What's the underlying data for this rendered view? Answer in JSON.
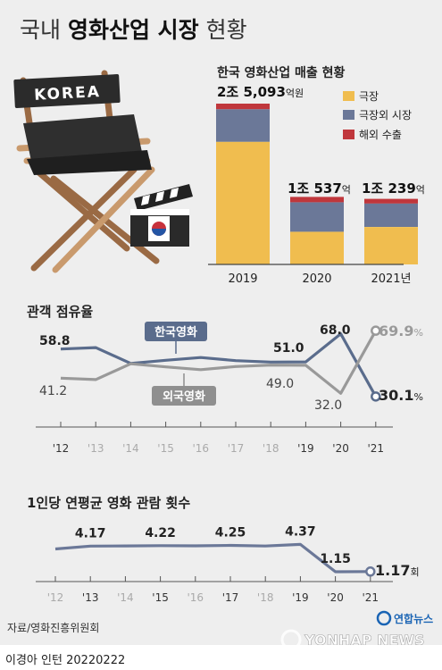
{
  "title": {
    "normal": "국내 ",
    "bold": "영화산업 시장",
    "suffix": " 현황"
  },
  "chair_label": "KOREA",
  "revenue_chart": {
    "title": "한국 영화산업 매출 현황",
    "legend": [
      "극장",
      "극장외 시장",
      "해외 수출"
    ],
    "colors": {
      "theater": "#f0bd4f",
      "non_theater": "#6b7898",
      "export": "#c0373c"
    },
    "labels": [
      {
        "big": "2조 5,093",
        "unit": "억원"
      },
      {
        "big": "1조 537",
        "unit": "억"
      },
      {
        "big": "1조 239",
        "unit": "억"
      }
    ]
  },
  "share_chart": {
    "title": "관객 점유율",
    "domestic_label": "한국영화",
    "foreign_label": "외국영화",
    "value_labels": {
      "d12": "58.8",
      "f12": "41.2",
      "d19": "51.0",
      "f19": "49.0",
      "d20": "68.0",
      "f20": "32.0",
      "d21": "30.1",
      "f21": "69.9",
      "pct": "%"
    }
  },
  "visits_chart": {
    "title": "1인당 연평균 영화 관람 횟수",
    "value_labels": [
      "4.17",
      "4.22",
      "4.25",
      "4.37",
      "1.15",
      "1.17"
    ],
    "last_unit": "회"
  },
  "source": "자료/영화진흥위원회",
  "logo_text": "연합뉴스",
  "watermark": "YONHAP NEWS",
  "footer": "이경아 인턴  20220222",
  "chart_data": [
    {
      "type": "bar",
      "title": "한국 영화산업 매출 현황",
      "categories": [
        "2019",
        "2020",
        "2021년"
      ],
      "series": [
        {
          "name": "극장",
          "values": [
            19140,
            5104,
            5845
          ]
        },
        {
          "name": "극장외 시장",
          "values": [
            5093,
            4603,
            3672
          ]
        },
        {
          "name": "해외 수출",
          "values": [
            860,
            830,
            722
          ]
        }
      ],
      "totals": [
        25093,
        10537,
        10239
      ],
      "unit": "억원"
    },
    {
      "type": "line",
      "title": "관객 점유율",
      "x": [
        "'12",
        "'13",
        "'14",
        "'15",
        "'16",
        "'17",
        "'18",
        "'19",
        "'20",
        "'21"
      ],
      "series": [
        {
          "name": "한국영화",
          "values": [
            58.8,
            59.7,
            50.1,
            52.0,
            53.7,
            51.8,
            50.9,
            51.0,
            68.0,
            30.1
          ]
        },
        {
          "name": "외국영화",
          "values": [
            41.2,
            40.3,
            49.9,
            48.0,
            46.3,
            48.2,
            49.1,
            49.0,
            32.0,
            69.9
          ]
        }
      ],
      "unit": "%"
    },
    {
      "type": "line",
      "title": "1인당 연평균 영화 관람 횟수",
      "x": [
        "'12",
        "'13",
        "'14",
        "'15",
        "'16",
        "'17",
        "'18",
        "'19",
        "'20",
        "'21"
      ],
      "series": [
        {
          "values": [
            3.83,
            4.17,
            4.19,
            4.22,
            4.2,
            4.25,
            4.18,
            4.37,
            1.15,
            1.17
          ]
        }
      ],
      "unit": "회"
    }
  ]
}
